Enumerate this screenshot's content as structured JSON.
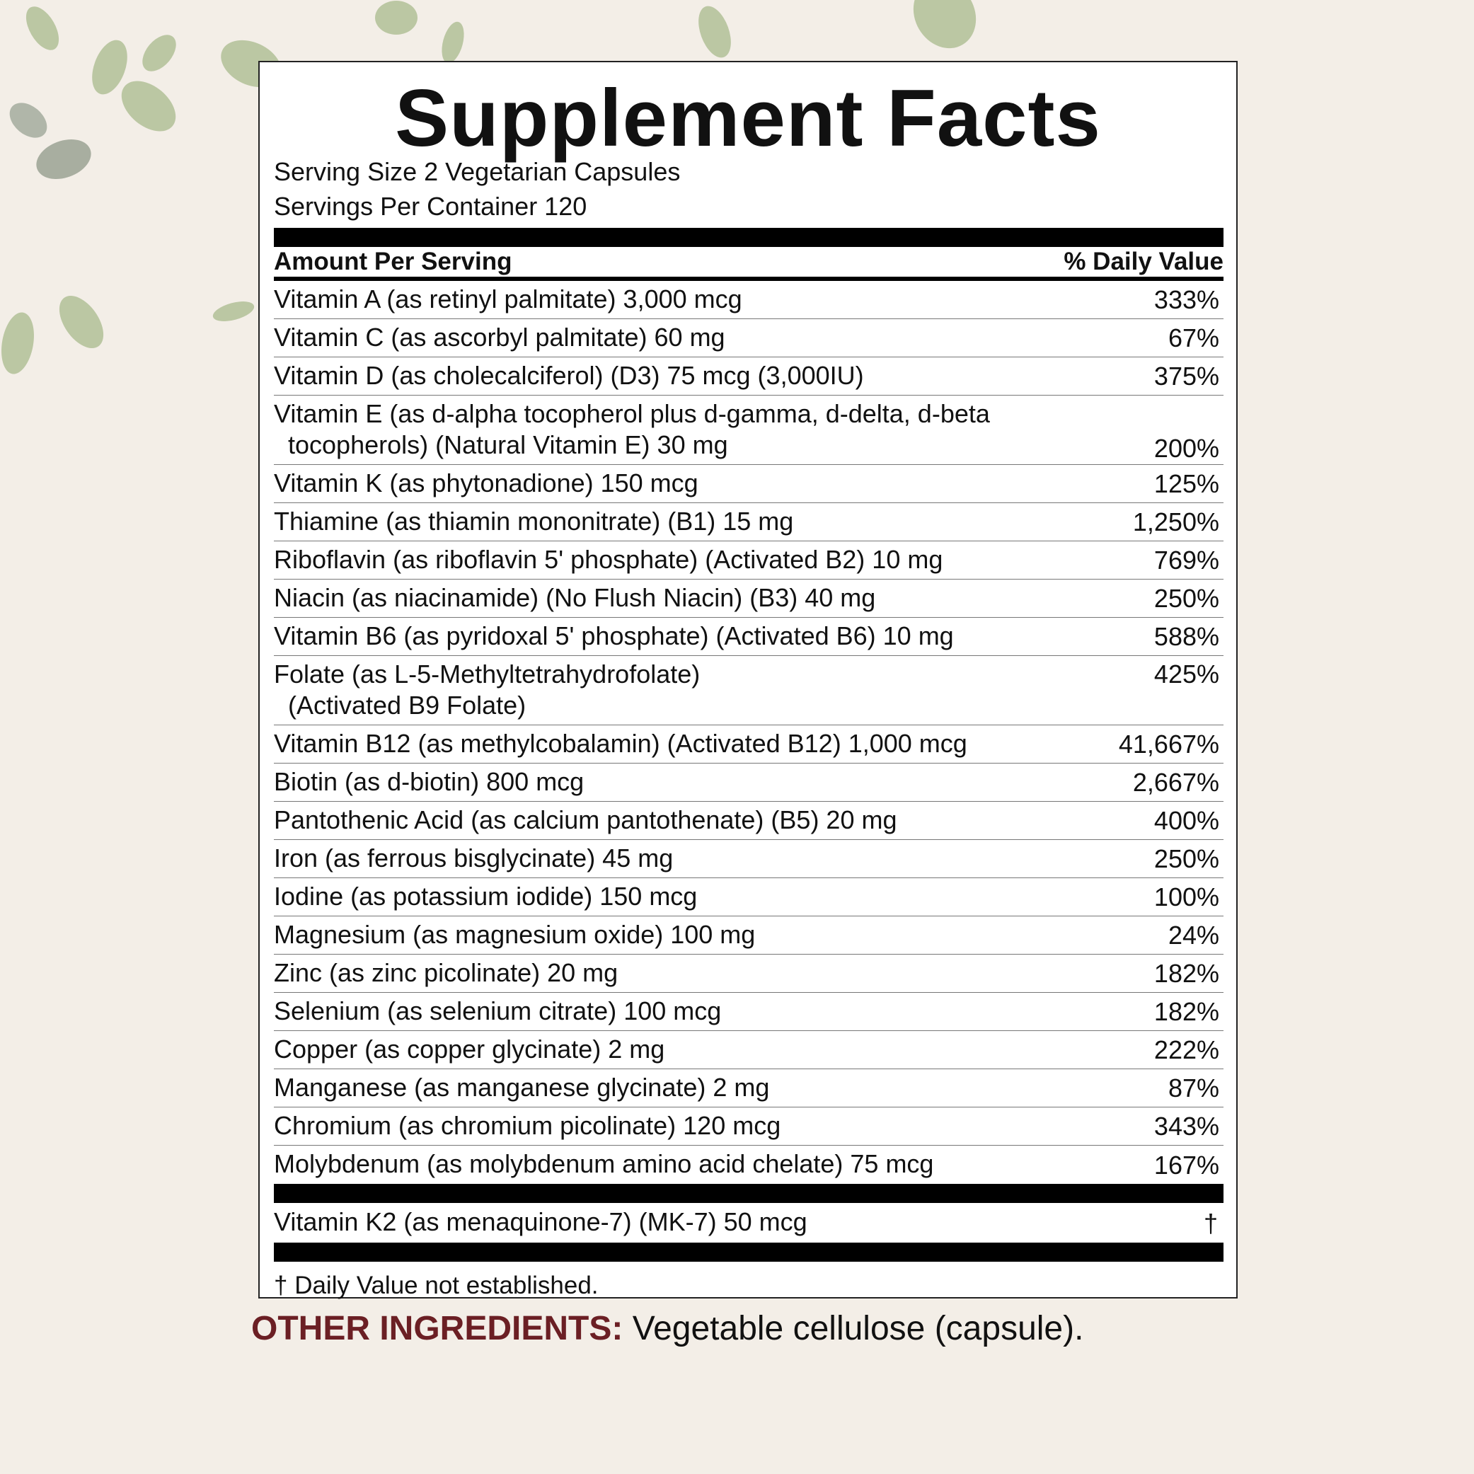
{
  "title": "Supplement Facts",
  "serving_size": "Serving Size 2 Vegetarian Capsules",
  "servings_per_container": "Servings Per Container 120",
  "header": {
    "amount": "Amount Per Serving",
    "daily_value": "% Daily Value"
  },
  "rows": [
    {
      "name": [
        "Vitamin A (as retinyl palmitate) 3,000 mcg"
      ],
      "dv": "333%"
    },
    {
      "name": [
        "Vitamin C (as ascorbyl palmitate) 60 mg"
      ],
      "dv": "67%"
    },
    {
      "name": [
        "Vitamin D (as cholecalciferol) (D3) 75 mcg (3,000IU)"
      ],
      "dv": "375%"
    },
    {
      "name": [
        "Vitamin E (as d-alpha tocopherol plus d-gamma, d-delta, d-beta",
        "tocopherols) (Natural Vitamin E) 30 mg"
      ],
      "dv": "200%"
    },
    {
      "name": [
        "Vitamin K (as phytonadione) 150 mcg"
      ],
      "dv": "125%"
    },
    {
      "name": [
        "Thiamine (as thiamin mononitrate) (B1) 15 mg"
      ],
      "dv": "1,250%"
    },
    {
      "name": [
        "Riboflavin (as riboflavin 5' phosphate) (Activated B2) 10 mg"
      ],
      "dv": "769%"
    },
    {
      "name": [
        "Niacin (as niacinamide) (No Flush Niacin) (B3) 40 mg"
      ],
      "dv": "250%"
    },
    {
      "name": [
        "Vitamin B6 (as pyridoxal 5' phosphate) (Activated B6) 10 mg"
      ],
      "dv": "588%"
    },
    {
      "name": [
        "Folate (as L-5-Methyltetrahydrofolate)",
        "(Activated B9 Folate)"
      ],
      "dv": "425%"
    },
    {
      "name": [
        "Vitamin B12 (as methylcobalamin) (Activated B12) 1,000 mcg"
      ],
      "dv": "41,667%"
    },
    {
      "name": [
        "Biotin (as d-biotin) 800 mcg"
      ],
      "dv": "2,667%"
    },
    {
      "name": [
        "Pantothenic Acid (as calcium pantothenate) (B5) 20 mg"
      ],
      "dv": "400%"
    },
    {
      "name": [
        "Iron (as ferrous bisglycinate) 45 mg"
      ],
      "dv": "250%"
    },
    {
      "name": [
        "Iodine (as potassium iodide) 150 mcg"
      ],
      "dv": "100%"
    },
    {
      "name": [
        "Magnesium (as magnesium oxide) 100 mg"
      ],
      "dv": "24%"
    },
    {
      "name": [
        "Zinc (as zinc picolinate) 20 mg"
      ],
      "dv": "182%"
    },
    {
      "name": [
        "Selenium (as selenium citrate) 100 mcg"
      ],
      "dv": "182%"
    },
    {
      "name": [
        "Copper (as copper glycinate) 2 mg"
      ],
      "dv": "222%"
    },
    {
      "name": [
        "Manganese (as manganese glycinate) 2 mg"
      ],
      "dv": "87%"
    },
    {
      "name": [
        "Chromium (as chromium picolinate) 120 mcg"
      ],
      "dv": "343%"
    },
    {
      "name": [
        "Molybdenum (as molybdenum amino acid chelate) 75 mcg"
      ],
      "dv": "167%"
    }
  ],
  "extra_rows": [
    {
      "name": [
        "Vitamin K2 (as menaquinone-7) (MK-7) 50 mcg"
      ],
      "dv": "†"
    }
  ],
  "footnote": "† Daily Value not established.",
  "other_ingredients": {
    "label": "OTHER INGREDIENTS:",
    "text": "Vegetable cellulose (capsule)."
  }
}
